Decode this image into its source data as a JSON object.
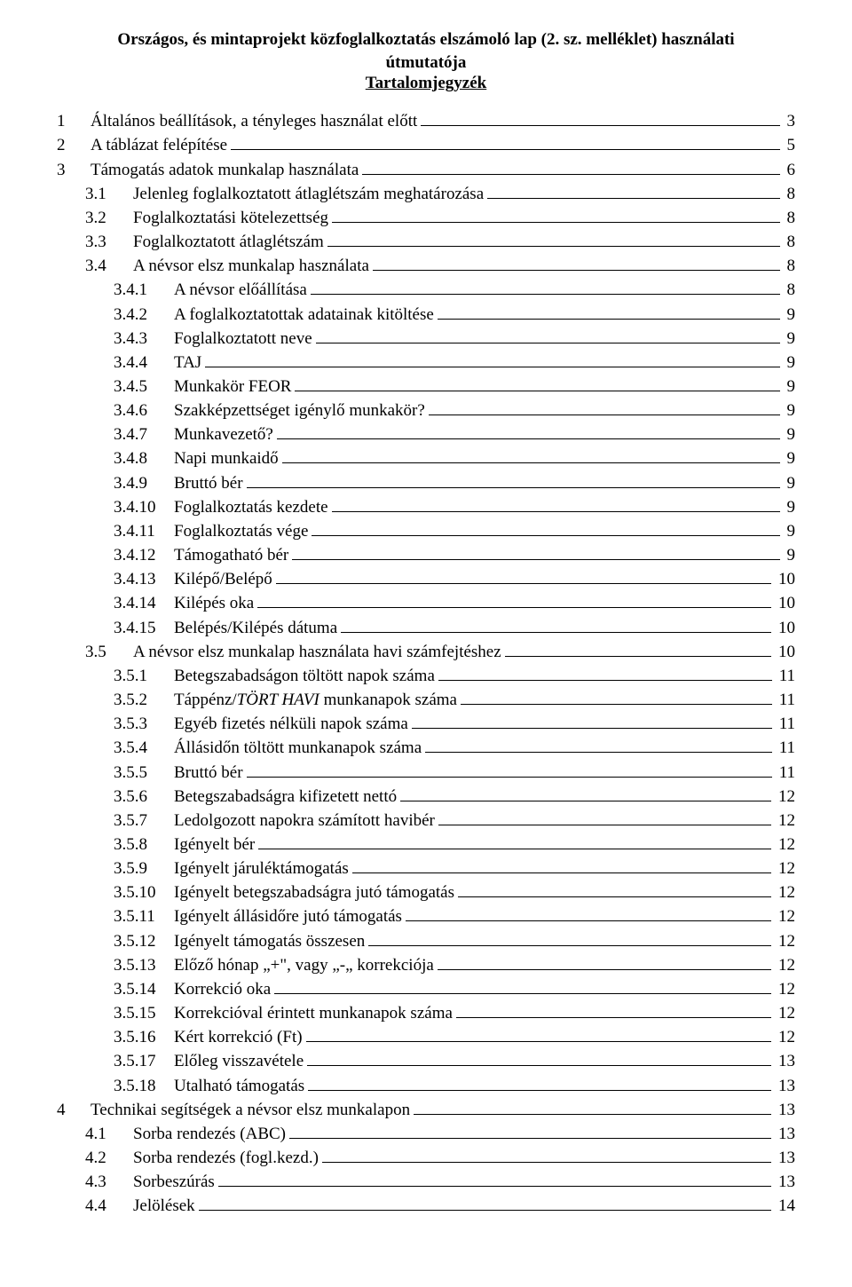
{
  "title_line1": "Országos, és mintaprojekt közfoglalkoztatás elszámoló lap (2. sz. melléklet) használati",
  "title_line2": "útmutatója",
  "subtitle": "Tartalomjegyzék",
  "toc": [
    {
      "indent": 0,
      "num": "1",
      "label": "Általános beállítások, a tényleges használat előtt",
      "page": "3"
    },
    {
      "indent": 0,
      "num": "2",
      "label": "A táblázat felépítése",
      "page": "5"
    },
    {
      "indent": 0,
      "num": "3",
      "label": "Támogatás adatok munkalap használata",
      "page": "6"
    },
    {
      "indent": 1,
      "num": "3.1",
      "label": "Jelenleg foglalkoztatott átlaglétszám meghatározása",
      "page": "8"
    },
    {
      "indent": 1,
      "num": "3.2",
      "label": "Foglalkoztatási kötelezettség",
      "page": "8"
    },
    {
      "indent": 1,
      "num": "3.3",
      "label": "Foglalkoztatott átlaglétszám",
      "page": "8"
    },
    {
      "indent": 1,
      "num": "3.4",
      "label": "A névsor elsz munkalap használata",
      "page": "8"
    },
    {
      "indent": 2,
      "num": "3.4.1",
      "label": "A névsor előállítása",
      "page": "8"
    },
    {
      "indent": 2,
      "num": "3.4.2",
      "label": "A foglalkoztatottak adatainak kitöltése",
      "page": "9"
    },
    {
      "indent": 2,
      "num": "3.4.3",
      "label": "Foglalkoztatott neve",
      "page": "9"
    },
    {
      "indent": 2,
      "num": "3.4.4",
      "label": "TAJ",
      "page": "9"
    },
    {
      "indent": 2,
      "num": "3.4.5",
      "label": "Munkakör FEOR",
      "page": "9"
    },
    {
      "indent": 2,
      "num": "3.4.6",
      "label": "Szakképzettséget igénylő munkakör?",
      "page": "9"
    },
    {
      "indent": 2,
      "num": "3.4.7",
      "label": "Munkavezető?",
      "page": "9"
    },
    {
      "indent": 2,
      "num": "3.4.8",
      "label": "Napi munkaidő",
      "page": "9"
    },
    {
      "indent": 2,
      "num": "3.4.9",
      "label": "Bruttó bér",
      "page": "9"
    },
    {
      "indent": 2,
      "num": "3.4.10",
      "label": "Foglalkoztatás kezdete",
      "page": "9"
    },
    {
      "indent": 2,
      "num": "3.4.11",
      "label": "Foglalkoztatás vége",
      "page": "9"
    },
    {
      "indent": 2,
      "num": "3.4.12",
      "label": "Támogatható bér",
      "page": "9"
    },
    {
      "indent": 2,
      "num": "3.4.13",
      "label": "Kilépő/Belépő",
      "page": "10"
    },
    {
      "indent": 2,
      "num": "3.4.14",
      "label": "Kilépés oka",
      "page": "10"
    },
    {
      "indent": 2,
      "num": "3.4.15",
      "label": "Belépés/Kilépés dátuma",
      "page": "10"
    },
    {
      "indent": 1,
      "num": "3.5",
      "label": "A névsor elsz munkalap használata havi számfejtéshez",
      "page": "10"
    },
    {
      "indent": 2,
      "num": "3.5.1",
      "label": "Betegszabadságon töltött napok száma",
      "page": "11"
    },
    {
      "indent": 2,
      "num": "3.5.2",
      "label_html": "Táppénz/<span class=\"italic\">TÖRT HAVI</span> munkanapok száma",
      "page": "11"
    },
    {
      "indent": 2,
      "num": "3.5.3",
      "label": "Egyéb fizetés nélküli napok száma",
      "page": "11"
    },
    {
      "indent": 2,
      "num": "3.5.4",
      "label": "Állásidőn töltött munkanapok száma",
      "page": "11"
    },
    {
      "indent": 2,
      "num": "3.5.5",
      "label": "Bruttó bér",
      "page": "11"
    },
    {
      "indent": 2,
      "num": "3.5.6",
      "label": "Betegszabadságra kifizetett nettó",
      "page": "12"
    },
    {
      "indent": 2,
      "num": "3.5.7",
      "label": "Ledolgozott napokra számított havibér",
      "page": "12"
    },
    {
      "indent": 2,
      "num": "3.5.8",
      "label": "Igényelt bér",
      "page": "12"
    },
    {
      "indent": 2,
      "num": "3.5.9",
      "label": "Igényelt járuléktámogatás",
      "page": "12"
    },
    {
      "indent": 2,
      "num": "3.5.10",
      "label": "Igényelt betegszabadságra jutó támogatás",
      "page": "12"
    },
    {
      "indent": 2,
      "num": "3.5.11",
      "label": "Igényelt állásidőre jutó támogatás",
      "page": "12"
    },
    {
      "indent": 2,
      "num": "3.5.12",
      "label": "Igényelt támogatás összesen",
      "page": "12"
    },
    {
      "indent": 2,
      "num": "3.5.13",
      "label": "Előző hónap „+\", vagy „-„ korrekciója",
      "page": "12"
    },
    {
      "indent": 2,
      "num": "3.5.14",
      "label": "Korrekció oka",
      "page": "12"
    },
    {
      "indent": 2,
      "num": "3.5.15",
      "label": "Korrekcióval érintett munkanapok száma",
      "page": "12"
    },
    {
      "indent": 2,
      "num": "3.5.16",
      "label": "Kért korrekció (Ft)",
      "page": "12"
    },
    {
      "indent": 2,
      "num": "3.5.17",
      "label": "Előleg visszavétele",
      "page": "13"
    },
    {
      "indent": 2,
      "num": "3.5.18",
      "label": "Utalható támogatás",
      "page": "13"
    },
    {
      "indent": 0,
      "num": "4",
      "label": "Technikai segítségek a névsor elsz munkalapon",
      "page": "13"
    },
    {
      "indent": 1,
      "num": "4.1",
      "label": "Sorba rendezés (ABC)",
      "page": "13"
    },
    {
      "indent": 1,
      "num": "4.2",
      "label": "Sorba rendezés (fogl.kezd.)",
      "page": "13"
    },
    {
      "indent": 1,
      "num": "4.3",
      "label": "Sorbeszúrás",
      "page": "13"
    },
    {
      "indent": 1,
      "num": "4.4",
      "label": "Jelölések",
      "page": "14"
    }
  ]
}
